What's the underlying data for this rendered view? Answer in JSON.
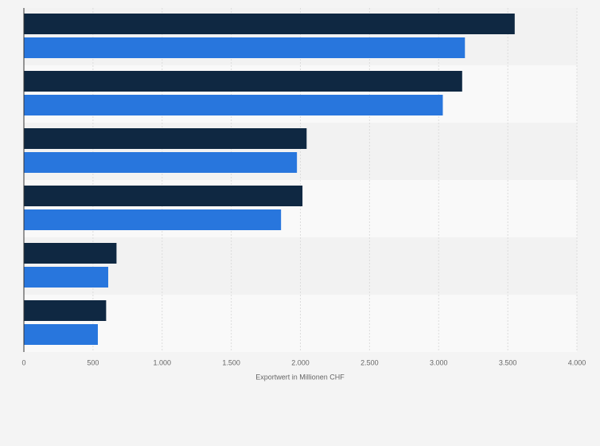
{
  "chart_data": {
    "type": "hbar",
    "categories": [
      null,
      null,
      null,
      null,
      null,
      null
    ],
    "series": [
      {
        "color": "#0f2842",
        "values": [
          3550,
          3170,
          2045,
          2015,
          670,
          595
        ]
      },
      {
        "color": "#2876dd",
        "values": [
          3190,
          3030,
          1975,
          1860,
          610,
          535
        ]
      }
    ],
    "xlabel": "Exportwert in Millionen CHF",
    "xlim": [
      0,
      4000
    ],
    "xticks": [
      0,
      500,
      {
        "value": 1000,
        "label": "1.000"
      },
      {
        "value": 1500,
        "label": "1.500"
      },
      {
        "value": 2000,
        "label": "2.000"
      },
      {
        "value": 2500,
        "label": "2.500"
      },
      {
        "value": 3000,
        "label": "3.000"
      },
      {
        "value": 3500,
        "label": "3.500"
      },
      {
        "value": 4000,
        "label": "4.000"
      }
    ],
    "grid": true
  }
}
